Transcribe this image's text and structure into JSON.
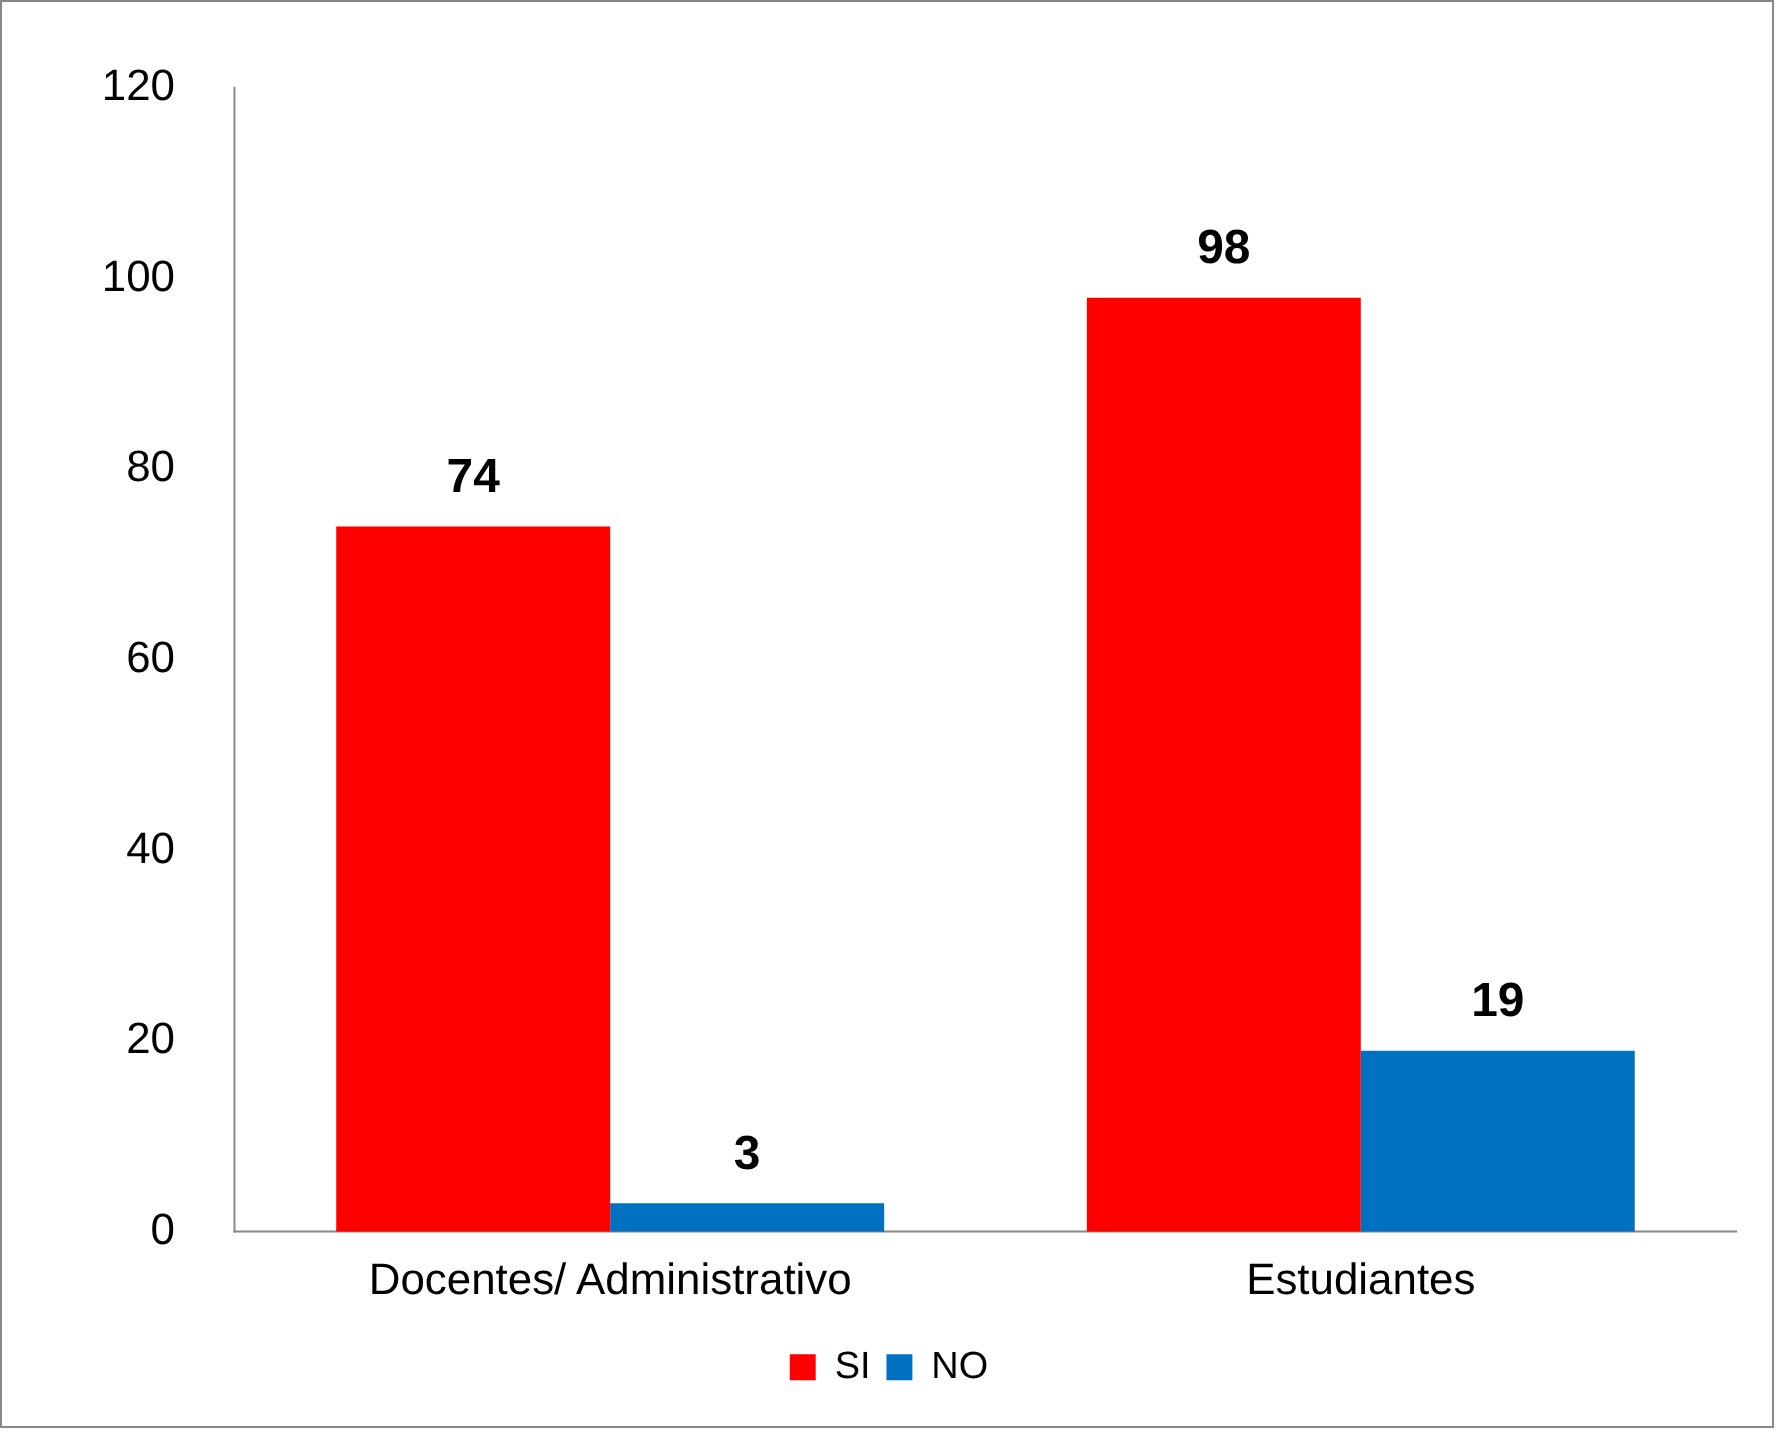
{
  "chart_data": {
    "type": "bar",
    "categories": [
      "Docentes/ Administrativo",
      "Estudiantes"
    ],
    "series": [
      {
        "name": "SI",
        "color": "#ff0000",
        "values": [
          74,
          98
        ]
      },
      {
        "name": "NO",
        "color": "#0070c0",
        "values": [
          3,
          19
        ]
      }
    ],
    "ylim": [
      0,
      120
    ],
    "yticks": [
      0,
      20,
      40,
      60,
      80,
      100,
      120
    ],
    "grid": false,
    "legend": "bottom",
    "data_labels": true
  }
}
